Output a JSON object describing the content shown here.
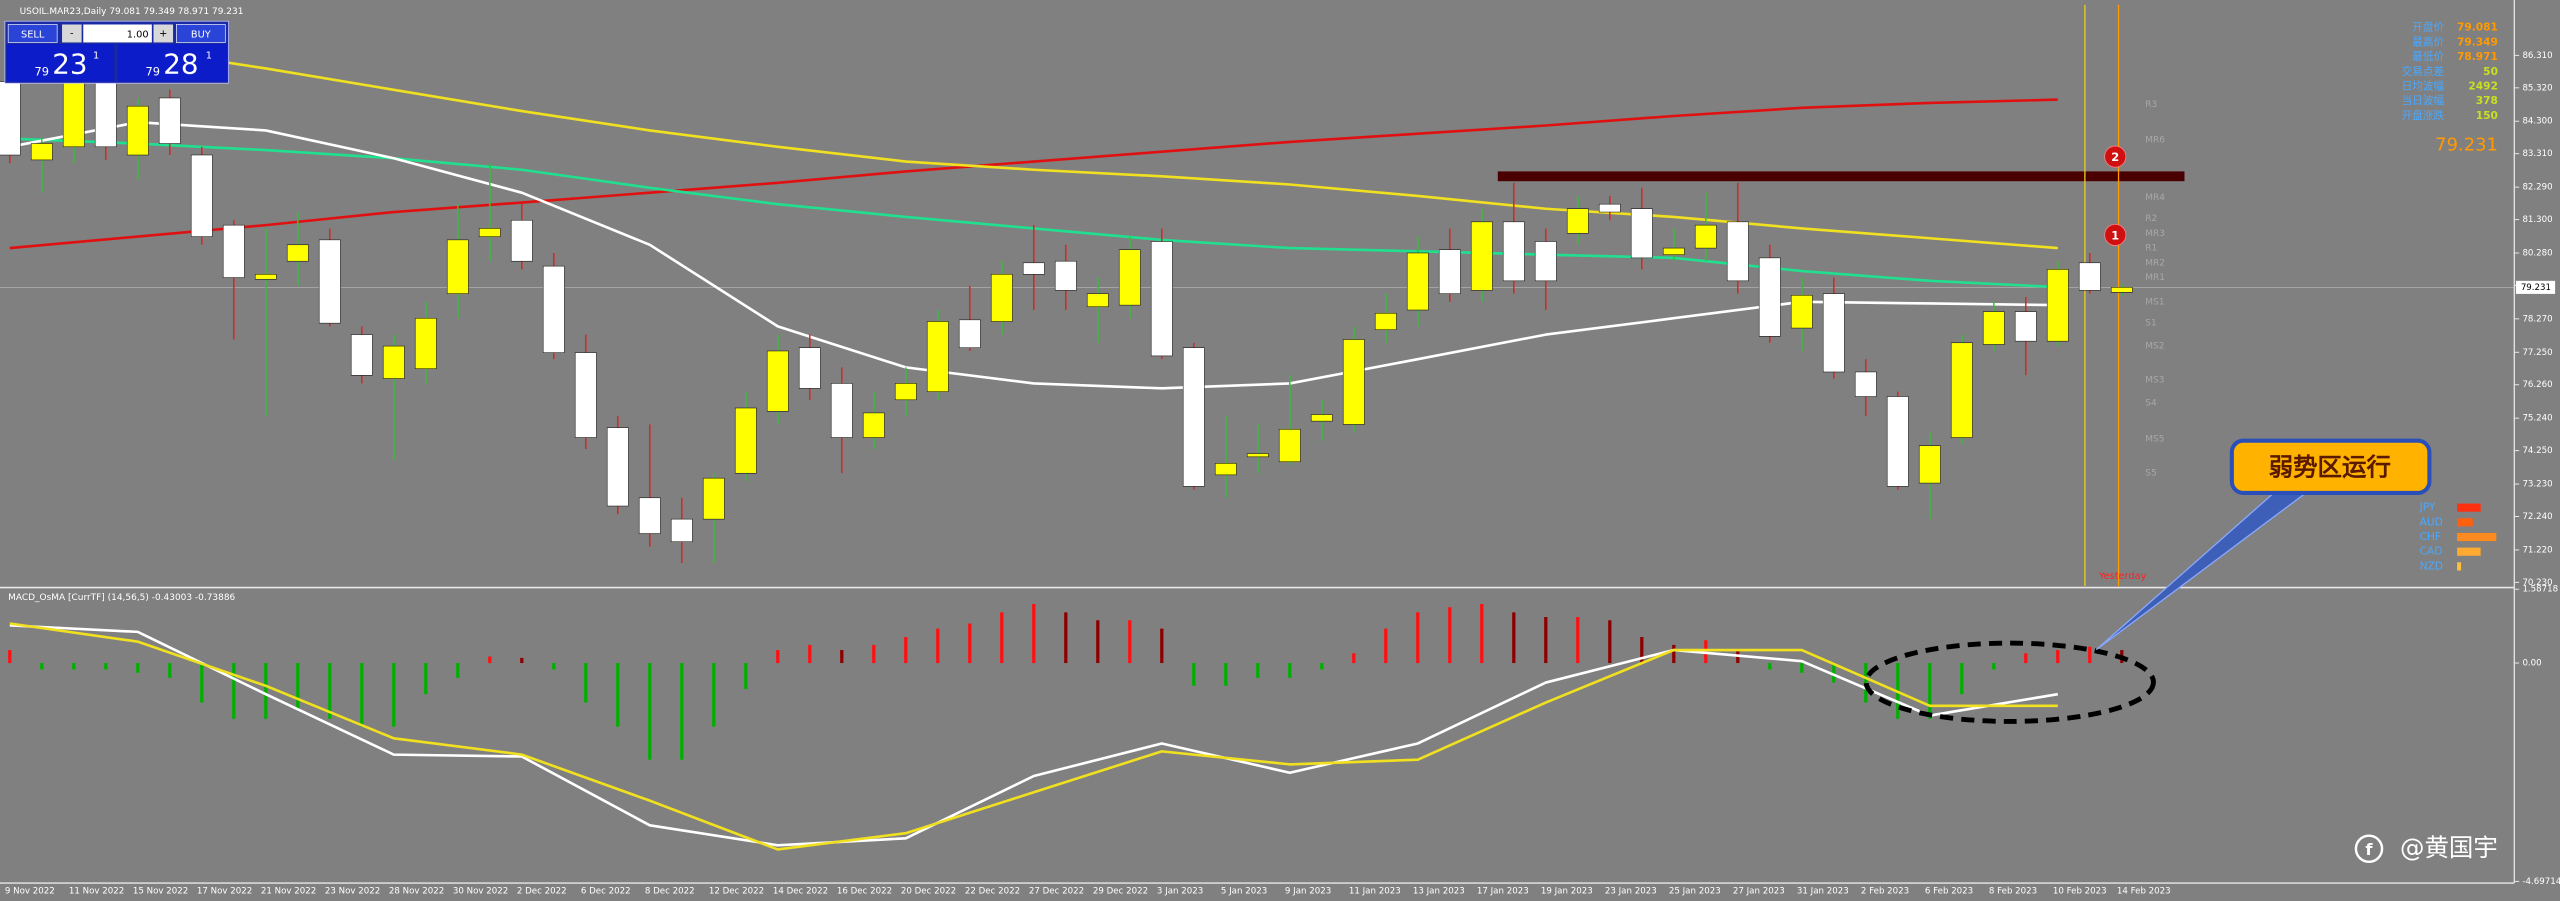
{
  "chart_data": [
    {
      "type": "candlestick",
      "title": "USOIL.MAR23,Daily  79.081 79.349 78.971 79.231",
      "categories": [
        "9 Nov 2022",
        null,
        "11 Nov 2022",
        null,
        "15 Nov 2022",
        null,
        "17 Nov 2022",
        null,
        "21 Nov 2022",
        null,
        "23 Nov 2022",
        null,
        "28 Nov 2022",
        null,
        "30 Nov 2022",
        null,
        "2 Dec 2022",
        null,
        "6 Dec 2022",
        null,
        "8 Dec 2022",
        null,
        "12 Dec 2022",
        null,
        "14 Dec 2022",
        null,
        "16 Dec 2022",
        null,
        "20 Dec 2022",
        null,
        "22 Dec 2022",
        null,
        "27 Dec 2022",
        null,
        "29 Dec 2022",
        null,
        "3 Jan 2023",
        null,
        "5 Jan 2023",
        null,
        "9 Jan 2023",
        null,
        "11 Jan 2023",
        null,
        "13 Jan 2023",
        null,
        "17 Jan 2023",
        null,
        "19 Jan 2023",
        null,
        "23 Jan 2023",
        null,
        "25 Jan 2023",
        null,
        "27 Jan 2023",
        null,
        "31 Jan 2023",
        null,
        "2 Feb 2023",
        null,
        "6 Feb 2023",
        null,
        "8 Feb 2023",
        null,
        "10 Feb 2023",
        null,
        "14 Feb 2023"
      ],
      "open": [
        85.51,
        83.12,
        83.52,
        85.76,
        83.27,
        85.01,
        83.27,
        81.13,
        79.48,
        80.03,
        80.68,
        77.79,
        76.45,
        76.75,
        79.04,
        80.78,
        81.28,
        79.88,
        77.24,
        74.95,
        72.81,
        72.16,
        72.16,
        73.56,
        75.45,
        77.39,
        76.3,
        74.65,
        75.8,
        76.05,
        78.24,
        78.19,
        79.98,
        80.03,
        78.64,
        78.69,
        80.63,
        77.39,
        73.51,
        74.06,
        73.91,
        75.15,
        75.05,
        77.94,
        78.54,
        80.38,
        79.14,
        81.23,
        80.63,
        80.88,
        81.77,
        81.63,
        80.23,
        80.43,
        81.23,
        80.13,
        77.99,
        79.04,
        76.65,
        75.9,
        73.26,
        74.65,
        77.49,
        78.49,
        77.59,
        79.98,
        79.081
      ],
      "high": [
        85.76,
        83.77,
        86.01,
        86.01,
        85.01,
        85.26,
        83.52,
        81.28,
        81.03,
        81.53,
        81.03,
        78.04,
        77.79,
        78.79,
        81.77,
        83.02,
        81.77,
        80.28,
        77.79,
        75.3,
        75.05,
        72.81,
        73.56,
        76.05,
        77.79,
        77.79,
        76.79,
        76.05,
        76.79,
        78.54,
        79.28,
        80.03,
        81.13,
        80.53,
        79.53,
        80.78,
        81.03,
        77.54,
        75.3,
        75.05,
        76.55,
        75.8,
        78.04,
        79.04,
        80.78,
        81.03,
        81.63,
        82.42,
        81.03,
        82.02,
        82.02,
        82.27,
        81.03,
        82.12,
        82.42,
        80.53,
        79.53,
        79.53,
        77.04,
        76.05,
        74.8,
        77.79,
        78.79,
        78.94,
        80.03,
        80.28,
        79.349
      ],
      "low": [
        83.02,
        82.12,
        83.02,
        83.12,
        82.52,
        83.27,
        80.53,
        77.64,
        75.3,
        79.28,
        78.04,
        76.3,
        73.96,
        76.3,
        78.29,
        80.03,
        79.78,
        77.04,
        74.3,
        72.31,
        71.32,
        70.82,
        70.82,
        73.31,
        75.05,
        75.8,
        73.56,
        74.3,
        75.3,
        75.8,
        77.29,
        77.79,
        78.54,
        78.54,
        77.54,
        78.29,
        77.04,
        73.06,
        72.81,
        73.56,
        73.81,
        74.55,
        74.8,
        77.54,
        78.04,
        78.79,
        78.79,
        79.04,
        78.54,
        80.53,
        81.28,
        79.78,
        80.03,
        80.03,
        79.04,
        77.54,
        77.29,
        76.45,
        75.3,
        73.06,
        72.16,
        74.45,
        77.29,
        76.55,
        77.44,
        79.04,
        78.971
      ],
      "close": [
        83.27,
        83.62,
        85.61,
        83.52,
        84.76,
        83.62,
        80.78,
        79.53,
        79.63,
        80.53,
        78.14,
        76.55,
        77.44,
        78.29,
        80.68,
        81.03,
        80.03,
        77.24,
        74.65,
        72.56,
        71.72,
        71.47,
        73.41,
        75.55,
        77.29,
        76.15,
        74.65,
        75.4,
        76.3,
        78.19,
        77.39,
        79.63,
        79.63,
        79.14,
        79.04,
        80.38,
        77.14,
        73.16,
        73.86,
        74.16,
        74.9,
        75.35,
        77.64,
        78.44,
        80.28,
        79.04,
        81.23,
        79.43,
        79.43,
        81.63,
        81.53,
        80.13,
        80.43,
        81.13,
        79.43,
        77.74,
        78.99,
        76.65,
        75.9,
        73.16,
        74.4,
        77.54,
        78.49,
        77.59,
        79.78,
        79.14,
        79.231
      ],
      "up_color": "#ffff00",
      "down_color": "#ffffff",
      "wick_colors": [
        "#22cc22",
        "#dd2222"
      ],
      "ylim": [
        70.12,
        87.85
      ],
      "yticks": [
        {
          "value": 86.31,
          "label": "86.310"
        },
        {
          "value": 85.32,
          "label": "85.320"
        },
        {
          "value": 84.3,
          "label": "84.300"
        },
        {
          "value": 83.31,
          "label": "83.310"
        },
        {
          "value": 82.29,
          "label": "82.290"
        },
        {
          "value": 81.3,
          "label": "81.300"
        },
        {
          "value": 80.28,
          "label": "80.280"
        },
        {
          "value": 79.29,
          "label": "79.290"
        },
        {
          "value": 78.27,
          "label": "78.270"
        },
        {
          "value": 77.25,
          "label": "77.250"
        },
        {
          "value": 76.26,
          "label": "76.260"
        },
        {
          "value": 75.24,
          "label": "75.240"
        },
        {
          "value": 74.25,
          "label": "74.250"
        },
        {
          "value": 73.23,
          "label": "73.230"
        },
        {
          "value": 72.24,
          "label": "72.240"
        },
        {
          "value": 71.22,
          "label": "71.220"
        },
        {
          "value": 70.23,
          "label": "70.230"
        }
      ],
      "last_price": 79.231,
      "lines": {
        "x": [
          "9 Nov 2022",
          "15 Nov 2022",
          "21 Nov 2022",
          "28 Nov 2022",
          "2 Dec 2022",
          "8 Dec 2022",
          "14 Dec 2022",
          "20 Dec 2022",
          "27 Dec 2022",
          "3 Jan 2023",
          "9 Jan 2023",
          "13 Jan 2023",
          "19 Jan 2023",
          "25 Jan 2023",
          "31 Jan 2023",
          "6 Feb 2023",
          "10 Feb 2023"
        ],
        "series": [
          {
            "color": "#e01010",
            "values": [
              80.43,
              80.78,
              81.13,
              81.53,
              81.82,
              82.12,
              82.42,
              82.77,
              83.07,
              83.37,
              83.67,
              83.92,
              84.17,
              84.46,
              84.71,
              84.86,
              84.96
            ]
          },
          {
            "color": "#f0e020",
            "values": [
              86.9,
              86.51,
              85.91,
              85.26,
              84.61,
              84.02,
              83.52,
              83.07,
              82.82,
              82.62,
              82.37,
              82.02,
              81.63,
              81.38,
              81.03,
              80.73,
              80.43
            ]
          },
          {
            "color": "#20e090",
            "values": [
              83.77,
              83.62,
              83.42,
              83.17,
              82.82,
              82.27,
              81.77,
              81.38,
              81.03,
              80.68,
              80.43,
              80.33,
              80.23,
              80.13,
              79.73,
              79.43,
              79.24
            ]
          },
          {
            "color": "#ffffff",
            "values": [
              83.52,
              84.27,
              84.02,
              83.17,
              82.12,
              80.53,
              78.04,
              76.79,
              76.3,
              76.15,
              76.3,
              77.04,
              77.79,
              78.29,
              78.79,
              78.74,
              78.69
            ]
          }
        ]
      },
      "resistance": 82.62,
      "markers": [
        {
          "label": "2",
          "value": 83.22
        },
        {
          "label": "1",
          "value": 80.83
        }
      ],
      "pivots": [
        {
          "label": "R3",
          "value": 84.81
        },
        {
          "label": "MR6",
          "value": 83.72
        },
        {
          "label": "MR4",
          "value": 81.98
        },
        {
          "label": "R2",
          "value": 81.33
        },
        {
          "label": "MR3",
          "value": 80.88
        },
        {
          "label": "R1",
          "value": 80.43
        },
        {
          "label": "MR2",
          "value": 79.98
        },
        {
          "label": "MR1",
          "value": 79.53
        },
        {
          "label": "MS1",
          "value": 78.79
        },
        {
          "label": "S1",
          "value": 78.14
        },
        {
          "label": "MS2",
          "value": 77.44
        },
        {
          "label": "MS3",
          "value": 76.4
        },
        {
          "label": "S4",
          "value": 75.7
        },
        {
          "label": "MS5",
          "value": 74.6
        },
        {
          "label": "S5",
          "value": 73.56
        }
      ],
      "yesterday_label": "Yesterday"
    },
    {
      "type": "macd",
      "title": "MACD_OsMA [CurrTF] (14,56,5) -0.43003 -0.73886",
      "values": [
        0.28,
        -0.14,
        -0.14,
        -0.14,
        -0.21,
        -0.32,
        -0.85,
        -1.2,
        -1.2,
        -1.02,
        -1.2,
        -1.37,
        -1.37,
        -0.67,
        -0.32,
        0.14,
        0.11,
        -0.14,
        -0.85,
        -1.37,
        -2.08,
        -2.08,
        -1.37,
        -0.56,
        0.28,
        0.39,
        0.28,
        0.39,
        0.56,
        0.74,
        0.85,
        1.09,
        1.27,
        1.09,
        0.92,
        0.92,
        0.74,
        -0.49,
        -0.49,
        -0.32,
        -0.32,
        -0.14,
        0.21,
        0.74,
        1.09,
        1.2,
        1.27,
        1.09,
        0.99,
        0.99,
        0.92,
        0.56,
        0.39,
        0.49,
        0.28,
        -0.14,
        -0.21,
        -0.42,
        -0.85,
        -1.2,
        -1.2,
        -0.67,
        -0.14,
        0.21,
        0.28,
        0.35,
        0.28
      ],
      "colors": {
        "rising": "#ff1010",
        "falling": "#8b0000",
        "negative": "#00b000"
      },
      "ylim": [
        -4.69714,
        1.58718
      ],
      "yticks": [
        1.58718,
        {
          "value": 0,
          "label": "0.00"
        },
        -4.69714
      ],
      "lines": {
        "x": [
          "9 Nov 2022",
          "15 Nov 2022",
          "21 Nov 2022",
          "28 Nov 2022",
          "2 Dec 2022",
          "8 Dec 2022",
          "14 Dec 2022",
          "20 Dec 2022",
          "27 Dec 2022",
          "3 Jan 2023",
          "9 Jan 2023",
          "13 Jan 2023",
          "19 Jan 2023",
          "25 Jan 2023",
          "31 Jan 2023",
          "6 Feb 2023",
          "10 Feb 2023"
        ],
        "series": [
          {
            "color": "#ffffff",
            "values": [
              0.81,
              0.67,
              -0.67,
              -1.97,
              -2.01,
              -3.49,
              -3.92,
              -3.77,
              -2.43,
              -1.73,
              -2.36,
              -1.73,
              -0.42,
              0.28,
              0.04,
              -1.13,
              -0.67
            ]
          },
          {
            "color": "#f0e020",
            "values": [
              0.85,
              0.46,
              -0.49,
              -1.62,
              -1.97,
              -2.96,
              -4.01,
              -3.66,
              -2.78,
              -1.9,
              -2.18,
              -2.08,
              -0.85,
              0.28,
              0.28,
              -0.92,
              -0.92
            ]
          }
        ]
      }
    }
  ],
  "trade_panel": {
    "sell": "SELL",
    "buy": "BUY",
    "lot": "1.00",
    "minus": "-",
    "plus": "+",
    "sell_price": {
      "big": "23",
      "small": "79",
      "sup": "1"
    },
    "buy_price": {
      "big": "28",
      "small": "79",
      "sup": "1"
    }
  },
  "info_panel": {
    "rows": [
      {
        "label": "开盘价",
        "value": 79.081
      },
      {
        "label": "最高价",
        "value": 79.349
      },
      {
        "label": "最低价",
        "value": 78.971
      },
      {
        "label": "交易点差",
        "value": 50
      },
      {
        "label": "日均波幅",
        "value": 2492
      },
      {
        "label": "当日波幅",
        "value": 378
      },
      {
        "label": "开盘涨跌",
        "value": 150
      }
    ],
    "price": 79.231
  },
  "currency_strength": [
    {
      "label": "JPY",
      "value": 6
    },
    {
      "label": "AUD",
      "value": 4
    },
    {
      "label": "CHF",
      "value": 10
    },
    {
      "label": "CAD",
      "value": 6
    },
    {
      "label": "NZD",
      "value": 1
    }
  ],
  "callout": "弱势区运行",
  "watermark": "@黄国宇"
}
